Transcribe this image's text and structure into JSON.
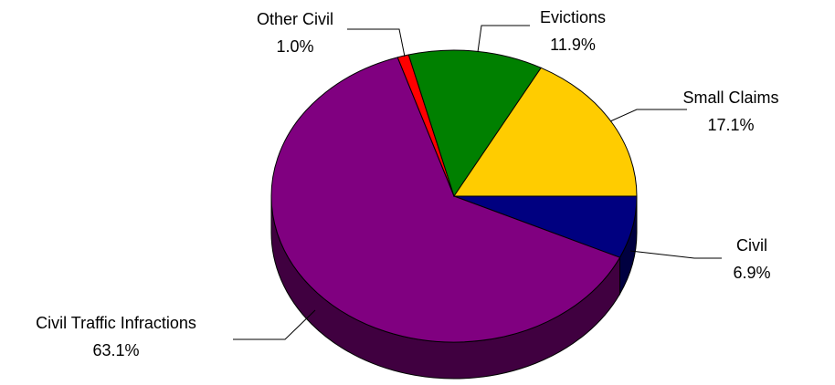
{
  "chart_data": {
    "type": "pie",
    "categories": [
      "Civil",
      "Civil Traffic Infractions",
      "Other Civil",
      "Evictions",
      "Small Claims"
    ],
    "values": [
      6.9,
      63.1,
      1.0,
      11.9,
      17.1
    ],
    "value_labels": [
      "6.9%",
      "63.1%",
      "1.0%",
      "11.9%",
      "17.1%"
    ],
    "colors": [
      "#000080",
      "#800080",
      "#ff0000",
      "#008000",
      "#ffcc00"
    ]
  }
}
